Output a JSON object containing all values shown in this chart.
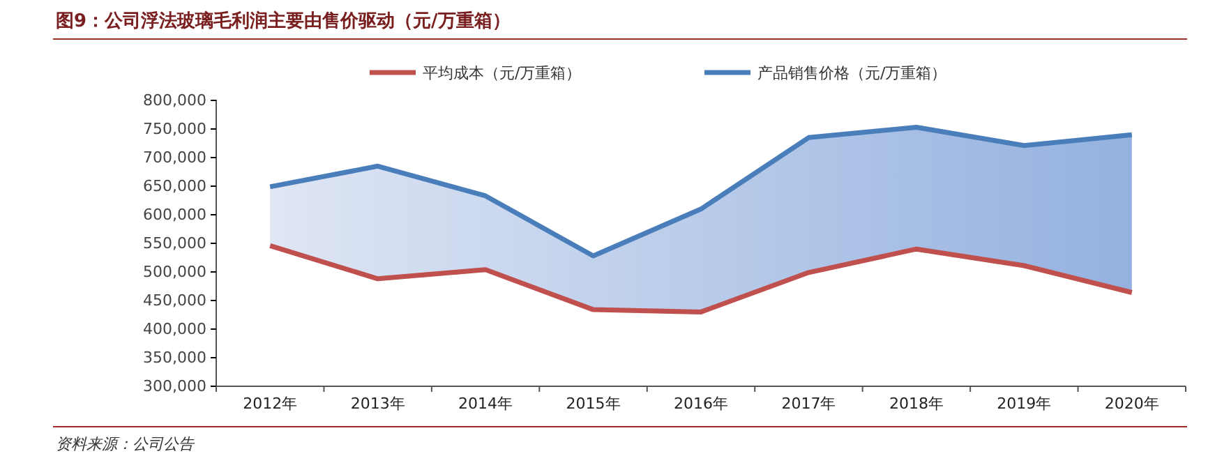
{
  "chart_data": {
    "type": "line",
    "title": "图9：公司浮法玻璃毛利润主要由售价驱动（元/万重箱）",
    "categories": [
      "2012年",
      "2013年",
      "2014年",
      "2015年",
      "2016年",
      "2017年",
      "2018年",
      "2019年",
      "2020年"
    ],
    "series": [
      {
        "name": "平均成本（元/万重箱）",
        "color": "#c0504d",
        "values": [
          546000,
          488000,
          504000,
          434000,
          430000,
          499000,
          540000,
          511000,
          464000
        ]
      },
      {
        "name": "产品销售价格（元/万重箱）",
        "color": "#4a7ebb",
        "values": [
          649000,
          685000,
          633000,
          528000,
          610000,
          735000,
          753000,
          721000,
          740000
        ]
      }
    ],
    "ylim": [
      300000,
      800000
    ],
    "yticks": [
      {
        "value": 300000,
        "label": "300,000"
      },
      {
        "value": 350000,
        "label": "350,000"
      },
      {
        "value": 400000,
        "label": "400,000"
      },
      {
        "value": 450000,
        "label": "450,000"
      },
      {
        "value": 500000,
        "label": "500,000"
      },
      {
        "value": 550000,
        "label": "550,000"
      },
      {
        "value": 600000,
        "label": "600,000"
      },
      {
        "value": 650000,
        "label": "650,000"
      },
      {
        "value": 700000,
        "label": "700,000"
      },
      {
        "value": 750000,
        "label": "750,000"
      },
      {
        "value": 800000,
        "label": "800,000"
      }
    ],
    "grid": false,
    "legend": "top",
    "marker": "none",
    "line_style": "solid",
    "annotations": [
      "资料来源：公司公告"
    ]
  }
}
